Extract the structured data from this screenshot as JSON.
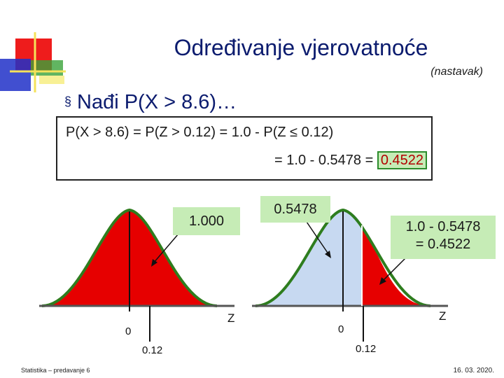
{
  "slide": {
    "title": "Određivanje vjerovatnoće",
    "subtitle": "(nastavak)",
    "bullet_marker": "§",
    "bullet_text": "Nađi P(X > 8.6)…",
    "formula_line1": "P(X > 8.6) = P(Z > 0.12) = 1.0 - P(Z ≤ 0.12)",
    "formula_line2_prefix": "= 1.0 - 0.5478 =",
    "formula_result": "0.4522"
  },
  "left_curve": {
    "callout": "1.000",
    "axis_label": "Z",
    "mean_label": "0",
    "marker_label": "0.12"
  },
  "right_curve": {
    "callout_mid": "0.5478",
    "callout_right_line1": "1.0 - 0.5478",
    "callout_right_line2": "= 0.4522",
    "axis_label": "Z",
    "mean_label": "0",
    "marker_label": "0.12"
  },
  "footer": {
    "left": "Statistika – predavanje 6",
    "right": "16. 03. 2020."
  },
  "colors": {
    "title": "#0b1b6e",
    "area_red": "#e60000",
    "area_blue": "#c7d9f1",
    "curve_green": "#2e7d1e",
    "callout_green": "#c6ecb6"
  }
}
